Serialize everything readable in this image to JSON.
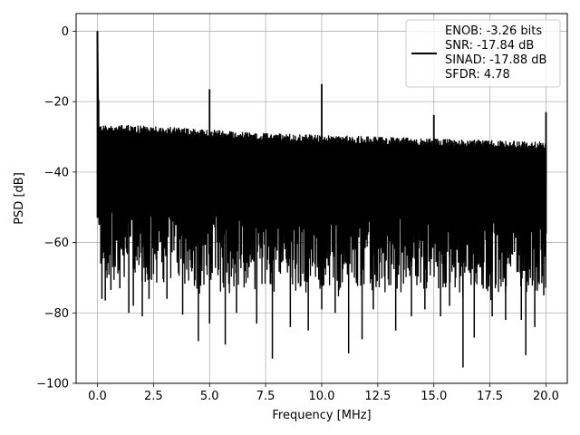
{
  "chart_data": {
    "type": "line",
    "title": "",
    "xlabel": "Frequency [MHz]",
    "ylabel": "PSD [dB]",
    "xlim": [
      -0.95,
      20.95
    ],
    "ylim": [
      -100,
      5
    ],
    "x_ticks": [
      0.0,
      2.5,
      5.0,
      7.5,
      10.0,
      12.5,
      15.0,
      17.5,
      20.0
    ],
    "x_tick_labels": [
      "0.0",
      "2.5",
      "5.0",
      "7.5",
      "10.0",
      "12.5",
      "15.0",
      "17.5",
      "20.0"
    ],
    "y_ticks": [
      0,
      -20,
      -40,
      -60,
      -80,
      -100
    ],
    "y_tick_labels": [
      "0",
      "−20",
      "−40",
      "−60",
      "−80",
      "−100"
    ],
    "grid": true,
    "legend_placement": "top-right",
    "series": [
      {
        "color": "#000000",
        "noise_upper": {
          "x": [
            0.1,
            2.5,
            5.0,
            7.5,
            10.0,
            12.5,
            15.0,
            17.5,
            20.0
          ],
          "y": [
            -27.5,
            -28.0,
            -29.0,
            -30.0,
            -30.5,
            -31.0,
            -31.5,
            -32.0,
            -32.5
          ]
        },
        "noise_lower": {
          "x": [
            0.1,
            2.5,
            5.0,
            7.5,
            10.0,
            12.5,
            15.0,
            17.5,
            20.0
          ],
          "y": [
            -72,
            -74,
            -75,
            -76,
            -76,
            -76,
            -77,
            -77,
            -77
          ]
        },
        "spikes": [
          {
            "x": 0.0,
            "y": 0.0
          },
          {
            "x": 0.05,
            "y": -19.5
          },
          {
            "x": 5.0,
            "y": -16.5
          },
          {
            "x": 10.0,
            "y": -15.0
          },
          {
            "x": 15.0,
            "y": -23.8
          },
          {
            "x": 20.0,
            "y": -23.0
          }
        ],
        "dips": [
          {
            "x": 0.15,
            "y": -66
          },
          {
            "x": 0.2,
            "y": -76
          },
          {
            "x": 0.35,
            "y": -76.5
          },
          {
            "x": 0.6,
            "y": -73.5
          },
          {
            "x": 1.0,
            "y": -73
          },
          {
            "x": 1.4,
            "y": -80
          },
          {
            "x": 1.6,
            "y": -78
          },
          {
            "x": 2.0,
            "y": -81
          },
          {
            "x": 2.3,
            "y": -76
          },
          {
            "x": 3.1,
            "y": -76
          },
          {
            "x": 3.8,
            "y": -80.5
          },
          {
            "x": 4.5,
            "y": -88
          },
          {
            "x": 5.0,
            "y": -83
          },
          {
            "x": 5.7,
            "y": -89
          },
          {
            "x": 6.2,
            "y": -80
          },
          {
            "x": 7.1,
            "y": -83
          },
          {
            "x": 7.8,
            "y": -93
          },
          {
            "x": 8.6,
            "y": -84
          },
          {
            "x": 9.4,
            "y": -85
          },
          {
            "x": 10.0,
            "y": -79
          },
          {
            "x": 10.6,
            "y": -80
          },
          {
            "x": 11.2,
            "y": -91.5
          },
          {
            "x": 11.8,
            "y": -87.5
          },
          {
            "x": 12.3,
            "y": -79
          },
          {
            "x": 13.3,
            "y": -85
          },
          {
            "x": 14.0,
            "y": -81
          },
          {
            "x": 14.6,
            "y": -79
          },
          {
            "x": 15.3,
            "y": -81
          },
          {
            "x": 15.7,
            "y": -78
          },
          {
            "x": 16.3,
            "y": -95.5
          },
          {
            "x": 16.8,
            "y": -87
          },
          {
            "x": 17.6,
            "y": -81
          },
          {
            "x": 18.2,
            "y": -82
          },
          {
            "x": 18.9,
            "y": -82
          },
          {
            "x": 19.1,
            "y": -92
          },
          {
            "x": 19.5,
            "y": -84
          },
          {
            "x": 19.9,
            "y": -75
          }
        ]
      }
    ],
    "legend": {
      "lines": [
        "ENOB: -3.26 bits",
        "SNR: -17.84 dB",
        "SINAD: -17.88 dB",
        "SFDR: 4.78"
      ]
    }
  }
}
